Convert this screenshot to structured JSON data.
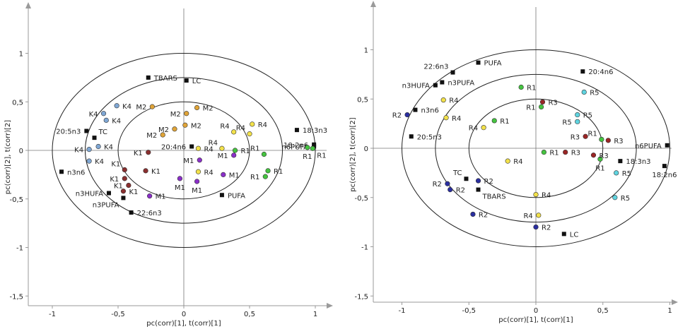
{
  "chart_data": [
    {
      "type": "scatter",
      "xlabel": "pc(corr)[1], t(corr)[1]",
      "ylabel": "pc(corr)[2], t(corr)[2]",
      "xlim": [
        -1.05,
        1.05
      ],
      "ylim": [
        -1.5,
        1.5
      ],
      "xticks": [
        "-1",
        "-0,5",
        "0",
        "0,5",
        "1"
      ],
      "yticks": [
        "-1,5",
        "-1",
        "-0,5",
        "0",
        "0,5",
        "1"
      ],
      "ellipses": [
        1.0,
        0.75,
        0.5
      ],
      "colors": {
        "loading": "#111111",
        "K": "#7fa7d4",
        "M2": "#e0a438",
        "M1": "#8b2fc9",
        "R4": "#f2e14a",
        "R1": "#45c440",
        "K1": "#8a2f2f"
      },
      "points": [
        {
          "label": "TBARS",
          "x": -0.27,
          "y": 0.75,
          "g": "loading",
          "ld": "r"
        },
        {
          "label": "LC",
          "x": 0.02,
          "y": 0.72,
          "g": "loading",
          "ld": "r"
        },
        {
          "label": "TC",
          "x": -0.68,
          "y": 0.13,
          "g": "loading",
          "ld": "ur"
        },
        {
          "label": "20:5n3",
          "x": -0.74,
          "y": 0.2,
          "g": "loading",
          "ld": "l"
        },
        {
          "label": "n3n6",
          "x": -0.93,
          "y": -0.22,
          "g": "loading",
          "ld": "r"
        },
        {
          "label": "n3HUFA",
          "x": -0.57,
          "y": -0.44,
          "g": "loading",
          "ld": "l"
        },
        {
          "label": "n3PUFA",
          "x": -0.46,
          "y": -0.49,
          "g": "loading",
          "ld": "bl"
        },
        {
          "label": "22:6n3",
          "x": -0.4,
          "y": -0.64,
          "g": "loading",
          "ld": "r"
        },
        {
          "label": "20:4n6",
          "x": 0.06,
          "y": 0.04,
          "g": "loading",
          "ld": "l"
        },
        {
          "label": "PUFA",
          "x": 0.29,
          "y": -0.46,
          "g": "loading",
          "ld": "r"
        },
        {
          "label": "18:3n3",
          "x": 0.86,
          "y": 0.21,
          "g": "loading",
          "ld": "r"
        },
        {
          "label": "18:2n6",
          "x": 0.99,
          "y": 0.06,
          "g": "loading",
          "ld": "l"
        },
        {
          "label": "n6PUFA",
          "x": 0.99,
          "y": 0.04,
          "g": "loading",
          "ld": "l"
        },
        {
          "label": "K4",
          "x": -0.51,
          "y": 0.46,
          "g": "K",
          "ld": "r"
        },
        {
          "label": "K4",
          "x": -0.61,
          "y": 0.38,
          "g": "K",
          "ld": "l"
        },
        {
          "label": "K4",
          "x": -0.59,
          "y": 0.31,
          "g": "K",
          "ld": "r"
        },
        {
          "label": "K4",
          "x": -0.65,
          "y": 0.04,
          "g": "K",
          "ld": "r"
        },
        {
          "label": "K4",
          "x": -0.72,
          "y": 0.01,
          "g": "K",
          "ld": "l"
        },
        {
          "label": "K4",
          "x": -0.72,
          "y": -0.11,
          "g": "K",
          "ld": "r"
        },
        {
          "label": "M2",
          "x": -0.24,
          "y": 0.45,
          "g": "M2",
          "ld": "l"
        },
        {
          "label": "M2",
          "x": 0.1,
          "y": 0.44,
          "g": "M2",
          "ld": "r"
        },
        {
          "label": "M2",
          "x": 0.02,
          "y": 0.38,
          "g": "M2",
          "ld": "l"
        },
        {
          "label": "M2",
          "x": 0.01,
          "y": 0.26,
          "g": "M2",
          "ld": "r"
        },
        {
          "label": "M2",
          "x": -0.07,
          "y": 0.22,
          "g": "M2",
          "ld": "l"
        },
        {
          "label": "M2",
          "x": -0.16,
          "y": 0.16,
          "g": "M2",
          "ld": "l"
        },
        {
          "label": "K1",
          "x": -0.27,
          "y": -0.02,
          "g": "K1",
          "ld": "l"
        },
        {
          "label": "K1",
          "x": -0.45,
          "y": -0.2,
          "g": "K1",
          "ld": "ul"
        },
        {
          "label": "K1",
          "x": -0.29,
          "y": -0.21,
          "g": "K1",
          "ld": "r"
        },
        {
          "label": "K1",
          "x": -0.45,
          "y": -0.29,
          "g": "K1",
          "ld": "l"
        },
        {
          "label": "K1",
          "x": -0.42,
          "y": -0.36,
          "g": "K1",
          "ld": "l"
        },
        {
          "label": "K1",
          "x": -0.46,
          "y": -0.42,
          "g": "K1",
          "ld": "r"
        },
        {
          "label": "M1",
          "x": 0.38,
          "y": -0.05,
          "g": "M1",
          "ld": "l"
        },
        {
          "label": "M1",
          "x": 0.12,
          "y": -0.1,
          "g": "M1",
          "ld": "l"
        },
        {
          "label": "M1",
          "x": 0.3,
          "y": -0.25,
          "g": "M1",
          "ld": "r"
        },
        {
          "label": "M1",
          "x": -0.03,
          "y": -0.29,
          "g": "M1",
          "ld": "b"
        },
        {
          "label": "M1",
          "x": -0.26,
          "y": -0.47,
          "g": "M1",
          "ld": "r"
        },
        {
          "label": "M1",
          "x": 0.1,
          "y": -0.32,
          "g": "M1",
          "ld": "b"
        },
        {
          "label": "R4",
          "x": 0.38,
          "y": 0.19,
          "g": "R4",
          "ld": "ul"
        },
        {
          "label": "R4",
          "x": 0.5,
          "y": 0.17,
          "g": "R4",
          "ld": "ul"
        },
        {
          "label": "R4",
          "x": 0.52,
          "y": 0.27,
          "g": "R4",
          "ld": "r"
        },
        {
          "label": "R4",
          "x": 0.29,
          "y": 0.02,
          "g": "R4",
          "ld": "ul"
        },
        {
          "label": "R4",
          "x": 0.11,
          "y": 0.02,
          "g": "R4",
          "ld": "r"
        },
        {
          "label": "R4",
          "x": 0.11,
          "y": -0.22,
          "g": "R4",
          "ld": "r"
        },
        {
          "label": "R1",
          "x": 0.39,
          "y": 0.0,
          "g": "R1",
          "ld": "r"
        },
        {
          "label": "R1",
          "x": 0.61,
          "y": -0.04,
          "g": "R1",
          "ld": "ul"
        },
        {
          "label": "R1",
          "x": 0.94,
          "y": 0.03,
          "g": "R1",
          "ld": "b"
        },
        {
          "label": "R1",
          "x": 0.98,
          "y": 0.02,
          "g": "R1",
          "ld": "br"
        },
        {
          "label": "R1",
          "x": 0.64,
          "y": -0.21,
          "g": "R1",
          "ld": "r"
        },
        {
          "label": "R1",
          "x": 0.62,
          "y": -0.27,
          "g": "R1",
          "ld": "l"
        }
      ]
    },
    {
      "type": "scatter",
      "xlabel": "pc(corr)[1], t(corr)[1]",
      "ylabel": "pc(corr)[2], t(corr)[2]",
      "xlim": [
        -1.05,
        1.05
      ],
      "ylim": [
        -1.5,
        1.5
      ],
      "xticks": [
        "-1",
        "-0,5",
        "0",
        "0,5",
        "1"
      ],
      "yticks": [
        "-1,5",
        "-1",
        "-0,5",
        "0",
        "0,5",
        "1"
      ],
      "ellipses": [
        1.0,
        0.75,
        0.5
      ],
      "colors": {
        "loading": "#111111",
        "R1": "#45c440",
        "R3": "#9a2525",
        "R4": "#f2e14a",
        "R5": "#5fd4e0",
        "R2": "#2a2ea0"
      },
      "points": [
        {
          "label": "22:6n3",
          "x": -0.62,
          "y": 0.77,
          "g": "loading",
          "ld": "ul"
        },
        {
          "label": "PUFA",
          "x": -0.43,
          "y": 0.87,
          "g": "loading",
          "ld": "r"
        },
        {
          "label": "n3PUFA",
          "x": -0.7,
          "y": 0.67,
          "g": "loading",
          "ld": "r"
        },
        {
          "label": "n3HUFA",
          "x": -0.75,
          "y": 0.64,
          "g": "loading",
          "ld": "l"
        },
        {
          "label": "n3n6",
          "x": -0.9,
          "y": 0.39,
          "g": "loading",
          "ld": "r"
        },
        {
          "label": "20:5n3",
          "x": -0.93,
          "y": 0.12,
          "g": "loading",
          "ld": "r"
        },
        {
          "label": "20:4n6",
          "x": 0.35,
          "y": 0.78,
          "g": "loading",
          "ld": "r"
        },
        {
          "label": "n6PUFA",
          "x": 0.98,
          "y": 0.03,
          "g": "loading",
          "ld": "l"
        },
        {
          "label": "18:3n3",
          "x": 0.63,
          "y": -0.13,
          "g": "loading",
          "ld": "r"
        },
        {
          "label": "18:2n6",
          "x": 0.96,
          "y": -0.18,
          "g": "loading",
          "ld": "b"
        },
        {
          "label": "TC",
          "x": -0.52,
          "y": -0.31,
          "g": "loading",
          "ld": "ul"
        },
        {
          "label": "TBARS",
          "x": -0.43,
          "y": -0.42,
          "g": "loading",
          "ld": "br"
        },
        {
          "label": "LC",
          "x": 0.21,
          "y": -0.87,
          "g": "loading",
          "ld": "r"
        },
        {
          "label": "R1",
          "x": -0.11,
          "y": 0.62,
          "g": "R1",
          "ld": "r"
        },
        {
          "label": "R1",
          "x": 0.04,
          "y": 0.42,
          "g": "R1",
          "ld": "l"
        },
        {
          "label": "R1",
          "x": -0.31,
          "y": 0.28,
          "g": "R1",
          "ld": "r"
        },
        {
          "label": "R1",
          "x": 0.06,
          "y": -0.04,
          "g": "R1",
          "ld": "r"
        },
        {
          "label": "R1",
          "x": 0.49,
          "y": 0.09,
          "g": "R1",
          "ld": "ul"
        },
        {
          "label": "R1",
          "x": 0.48,
          "y": -0.11,
          "g": "R1",
          "ld": "b"
        },
        {
          "label": "R3",
          "x": 0.05,
          "y": 0.47,
          "g": "R3",
          "ld": "r"
        },
        {
          "label": "R3",
          "x": 0.37,
          "y": 0.12,
          "g": "R3",
          "ld": "l"
        },
        {
          "label": "R3",
          "x": 0.54,
          "y": 0.08,
          "g": "R3",
          "ld": "r"
        },
        {
          "label": "R3",
          "x": 0.22,
          "y": -0.04,
          "g": "R3",
          "ld": "r"
        },
        {
          "label": "R3",
          "x": 0.43,
          "y": -0.07,
          "g": "R3",
          "ld": "r"
        },
        {
          "label": "R4",
          "x": -0.69,
          "y": 0.49,
          "g": "R4",
          "ld": "r"
        },
        {
          "label": "R4",
          "x": -0.67,
          "y": 0.31,
          "g": "R4",
          "ld": "r"
        },
        {
          "label": "R4",
          "x": -0.39,
          "y": 0.21,
          "g": "R4",
          "ld": "l"
        },
        {
          "label": "R4",
          "x": -0.21,
          "y": -0.13,
          "g": "R4",
          "ld": "r"
        },
        {
          "label": "R4",
          "x": 0.0,
          "y": -0.47,
          "g": "R4",
          "ld": "r"
        },
        {
          "label": "R4",
          "x": 0.02,
          "y": -0.68,
          "g": "R4",
          "ld": "l"
        },
        {
          "label": "R5",
          "x": 0.36,
          "y": 0.57,
          "g": "R5",
          "ld": "r"
        },
        {
          "label": "R5",
          "x": 0.31,
          "y": 0.34,
          "g": "R5",
          "ld": "r"
        },
        {
          "label": "R5",
          "x": 0.31,
          "y": 0.27,
          "g": "R5",
          "ld": "l"
        },
        {
          "label": "R5",
          "x": 0.6,
          "y": -0.25,
          "g": "R5",
          "ld": "r"
        },
        {
          "label": "R5",
          "x": 0.59,
          "y": -0.5,
          "g": "R5",
          "ld": "r"
        },
        {
          "label": "R2",
          "x": -0.96,
          "y": 0.34,
          "g": "R2",
          "ld": "l"
        },
        {
          "label": "R2",
          "x": -0.66,
          "y": -0.36,
          "g": "R2",
          "ld": "l"
        },
        {
          "label": "R2",
          "x": -0.64,
          "y": -0.42,
          "g": "R2",
          "ld": "r"
        },
        {
          "label": "R2",
          "x": -0.43,
          "y": -0.33,
          "g": "R2",
          "ld": "r"
        },
        {
          "label": "R2",
          "x": -0.47,
          "y": -0.67,
          "g": "R2",
          "ld": "r"
        },
        {
          "label": "R2",
          "x": 0.0,
          "y": -0.8,
          "g": "R2",
          "ld": "r"
        }
      ]
    }
  ]
}
